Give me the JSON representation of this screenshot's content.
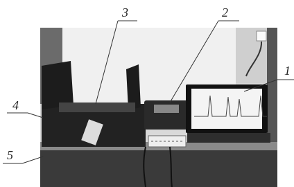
{
  "callouts": [
    {
      "label": "1"
    },
    {
      "label": "2"
    },
    {
      "label": "3"
    },
    {
      "label": "4"
    },
    {
      "label": "5"
    }
  ]
}
